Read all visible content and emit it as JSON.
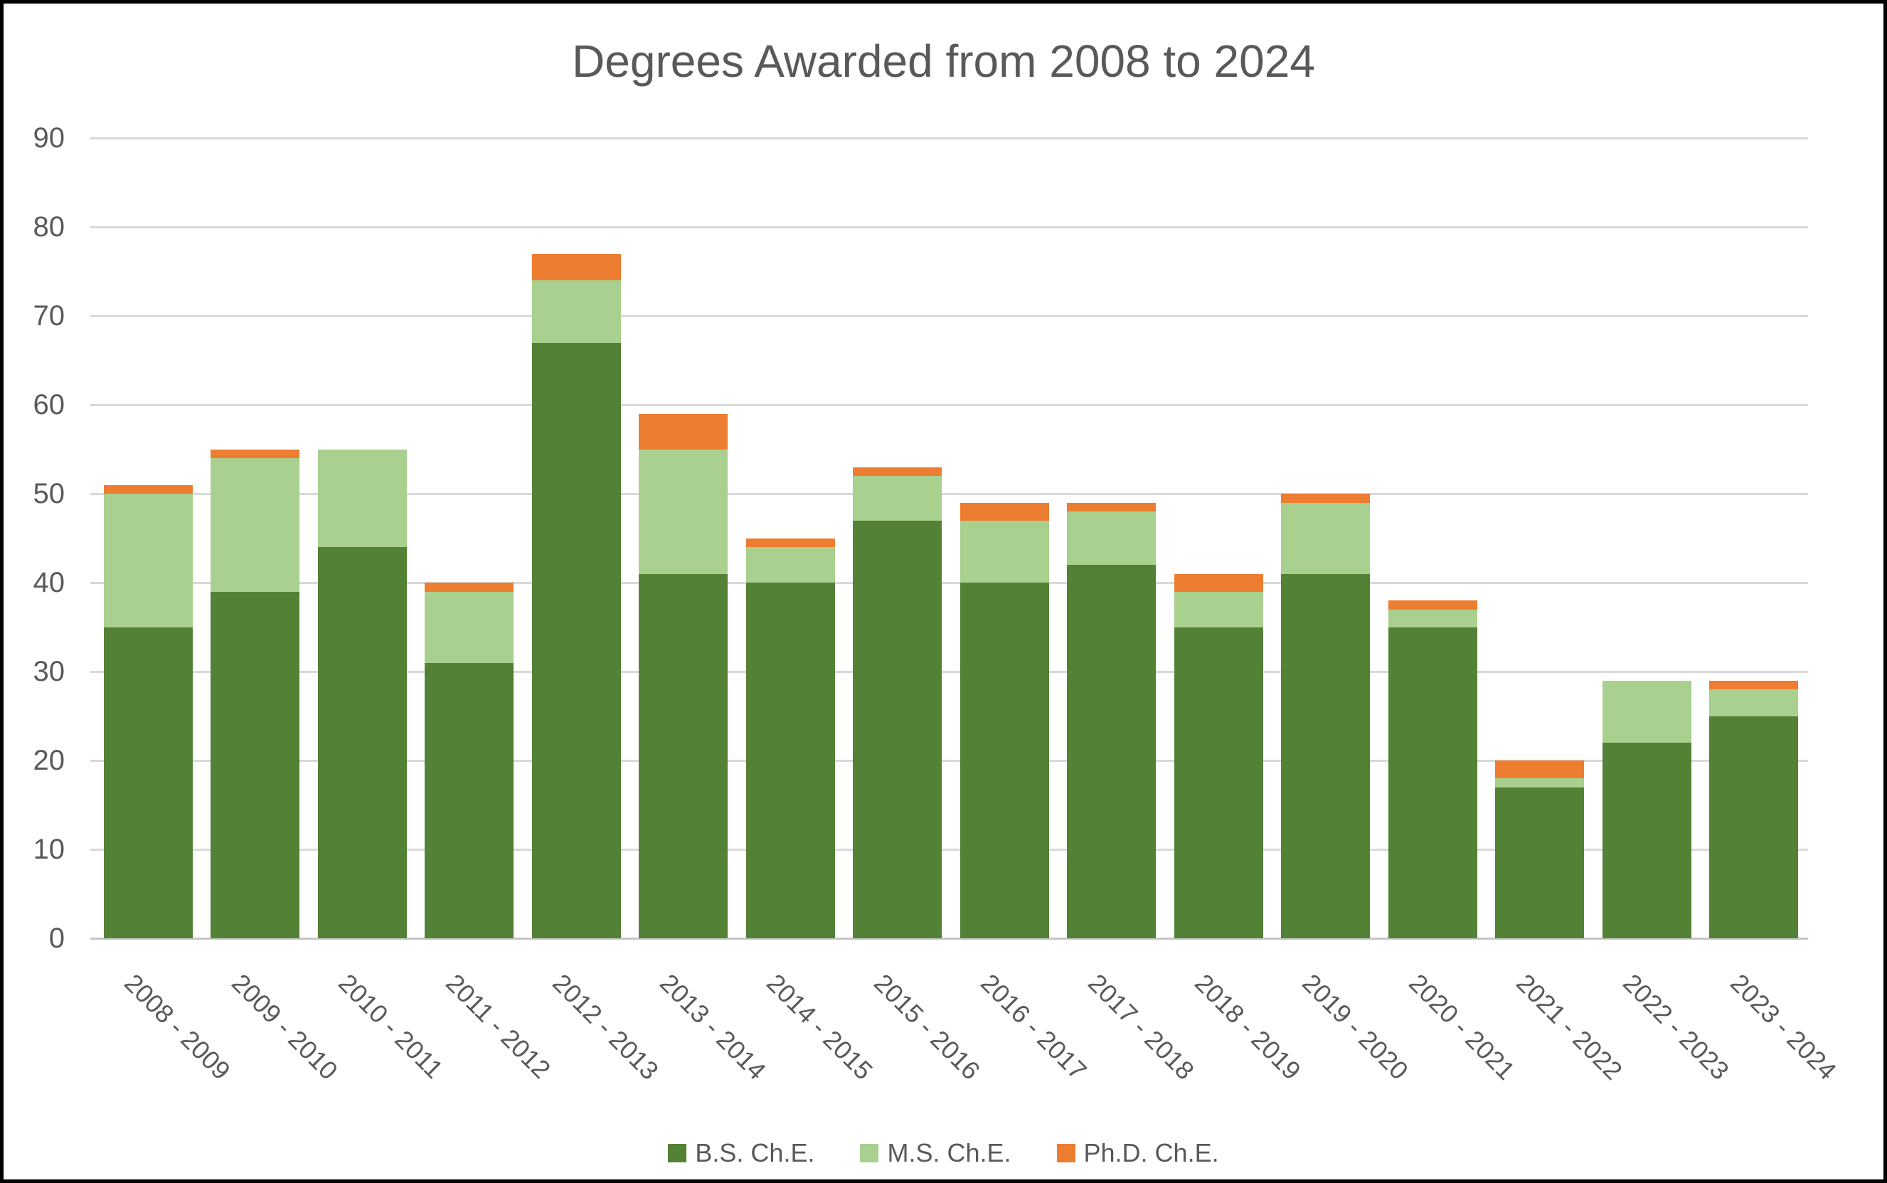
{
  "window": {
    "background": "#ffffff",
    "border_color": "#000000"
  },
  "chart_data": {
    "type": "bar",
    "stacked": true,
    "title": "Degrees Awarded from 2008 to 2024",
    "categories": [
      "2008 - 2009",
      "2009 - 2010",
      "2010 - 2011",
      "2011 - 2012",
      "2012 - 2013",
      "2013 - 2014",
      "2014 - 2015",
      "2015 - 2016",
      "2016 - 2017",
      "2017 - 2018",
      "2018 - 2019",
      "2019 - 2020",
      "2020 - 2021",
      "2021 - 2022",
      "2022 - 2023",
      "2023 - 2024"
    ],
    "series": [
      {
        "name": "B.S. Ch.E.",
        "color": "#538135",
        "values": [
          35,
          39,
          44,
          31,
          67,
          41,
          40,
          47,
          40,
          42,
          35,
          41,
          35,
          17,
          22,
          25
        ]
      },
      {
        "name": "M.S. Ch.E.",
        "color": "#a9d08e",
        "values": [
          15,
          15,
          11,
          8,
          7,
          14,
          4,
          5,
          7,
          6,
          4,
          8,
          2,
          1,
          7,
          3
        ]
      },
      {
        "name": "Ph.D. Ch.E.",
        "color": "#ed7d31",
        "values": [
          1,
          1,
          0,
          1,
          3,
          4,
          1,
          1,
          2,
          1,
          2,
          1,
          1,
          2,
          0,
          1
        ]
      }
    ],
    "stack_totals": [
      51,
      55,
      55,
      40,
      77,
      59,
      45,
      53,
      49,
      49,
      41,
      50,
      38,
      20,
      29,
      29
    ],
    "y_axis": {
      "min": 0,
      "max": 90,
      "step": 10,
      "tick_labels": [
        "0",
        "10",
        "20",
        "30",
        "40",
        "50",
        "60",
        "70",
        "80",
        "90"
      ]
    },
    "x_axis_label_rotation_deg": 45,
    "grid": true,
    "gridline_color": "#d9d9d9",
    "text_color": "#595959",
    "legend_position": "bottom"
  }
}
